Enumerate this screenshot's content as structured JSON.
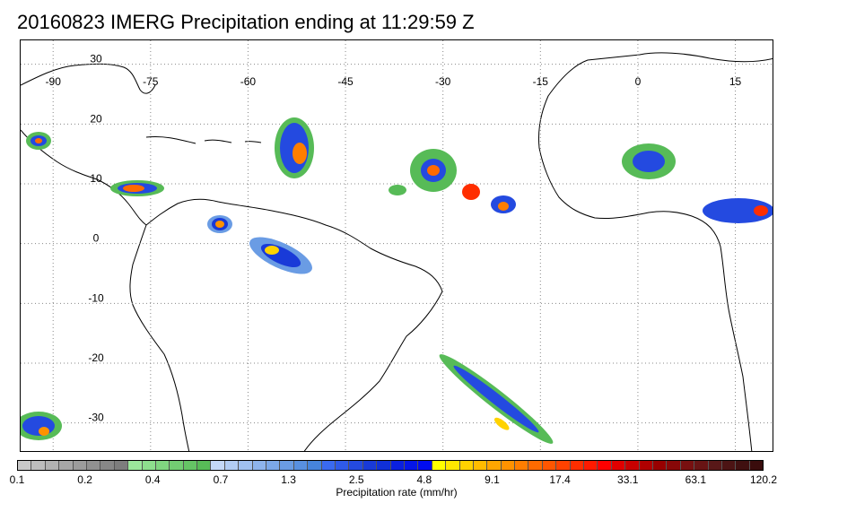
{
  "title": "20160823 IMERG Precipitation ending at 11:29:59 Z",
  "map": {
    "lon_labels": [
      "-90",
      "-75",
      "-60",
      "-45",
      "-30",
      "-15",
      "0",
      "15"
    ],
    "lon_values": [
      -90,
      -75,
      -60,
      -45,
      -30,
      -15,
      0,
      15
    ],
    "lat_labels": [
      "30",
      "20",
      "10",
      "0",
      "-10",
      "-20",
      "-30"
    ],
    "lat_values": [
      30,
      20,
      10,
      0,
      -10,
      -20,
      -30
    ],
    "lon_range": [
      -95,
      21
    ],
    "lat_range": [
      34,
      -35
    ],
    "gridlines": "dotted"
  },
  "colorbar": {
    "title": "Precipitation rate (mm/hr)",
    "tick_labels": [
      "0.1",
      "0.2",
      "0.4",
      "0.7",
      "1.3",
      "2.5",
      "4.8",
      "9.1",
      "17.4",
      "33.1",
      "63.1",
      "120.2"
    ],
    "colors": [
      "#c8c8c8",
      "#bdbdbd",
      "#b2b2b2",
      "#a7a7a7",
      "#9c9c9c",
      "#919191",
      "#878787",
      "#7d7d7d",
      "#9be89b",
      "#8ddf8d",
      "#80d680",
      "#72cd72",
      "#65c465",
      "#57bb57",
      "#c4d8f8",
      "#b2ccf4",
      "#a0c0f0",
      "#8eb4ec",
      "#7ca8e8",
      "#6a9ce4",
      "#5890e0",
      "#4684dc",
      "#3a6af0",
      "#2f5ae8",
      "#244ae0",
      "#193ad8",
      "#1030d8",
      "#0a20e0",
      "#0516e8",
      "#000cf0",
      "#ffff00",
      "#ffe800",
      "#ffd200",
      "#ffbc00",
      "#ffa600",
      "#ff9200",
      "#ff7e00",
      "#ff6a00",
      "#ff5600",
      "#ff4200",
      "#ff2e00",
      "#ff1a00",
      "#ff0000",
      "#e00000",
      "#c80000",
      "#b00000",
      "#980000",
      "#880808",
      "#781010",
      "#681414",
      "#581818",
      "#4c1414",
      "#401010",
      "#3a0c0c"
    ]
  }
}
